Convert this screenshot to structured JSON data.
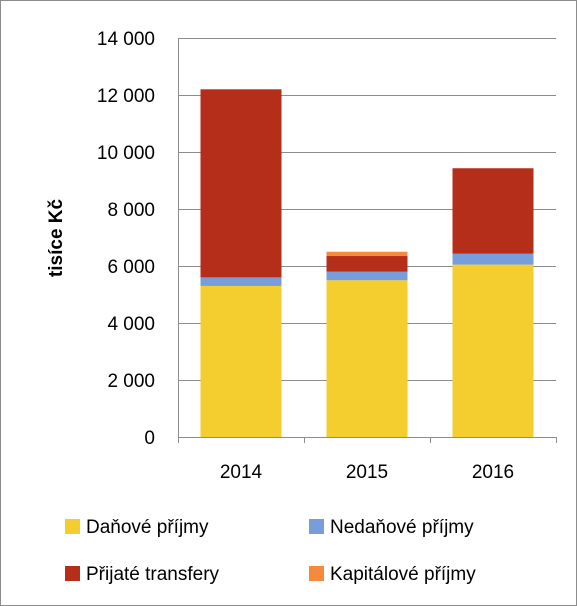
{
  "chart_data": {
    "type": "bar",
    "stacked": true,
    "categories": [
      "2014",
      "2015",
      "2016"
    ],
    "series": [
      {
        "name": "Daňové příjmy",
        "color": "#f4cd2f",
        "values": [
          5300,
          5500,
          6050
        ]
      },
      {
        "name": "Nedaňové příjmy",
        "color": "#779edb",
        "values": [
          300,
          300,
          380
        ]
      },
      {
        "name": "Přijaté transfery",
        "color": "#b52e19",
        "values": [
          6600,
          550,
          3000
        ]
      },
      {
        "name": "Kapitálové příjmy",
        "color": "#f58a3c",
        "values": [
          0,
          150,
          0
        ]
      }
    ],
    "ylabel": "tisíce Kč",
    "ylim": [
      0,
      14000
    ],
    "yticks": [
      0,
      2000,
      4000,
      6000,
      8000,
      10000,
      12000,
      14000
    ],
    "ytick_labels": [
      "0",
      "2 000",
      "4 000",
      "6 000",
      "8 000",
      "10 000",
      "12 000",
      "14 000"
    ],
    "grid": "horizontal",
    "legend_position": "bottom"
  }
}
